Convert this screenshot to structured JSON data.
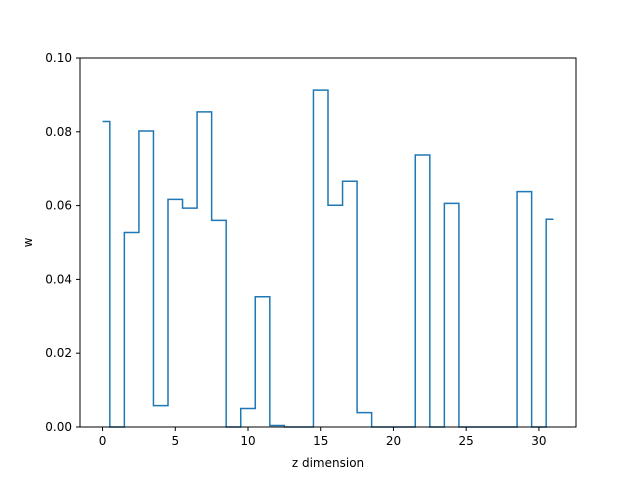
{
  "chart_data": {
    "type": "line",
    "drawstyle": "steps-mid",
    "xlabel": "z dimension",
    "ylabel": "w",
    "xlim": [
      -1.55,
      32.55
    ],
    "ylim": [
      0,
      0.1
    ],
    "xticks": [
      0,
      5,
      10,
      15,
      20,
      25,
      30
    ],
    "yticks": [
      0.0,
      0.02,
      0.04,
      0.06,
      0.08,
      0.1
    ],
    "ytick_labels": [
      "0.00",
      "0.02",
      "0.04",
      "0.06",
      "0.08",
      "0.10"
    ],
    "grid": false,
    "series": [
      {
        "color": "#1f77b4",
        "x": [
          0,
          1,
          2,
          3,
          4,
          5,
          6,
          7,
          8,
          9,
          10,
          11,
          12,
          13,
          14,
          15,
          16,
          17,
          18,
          19,
          20,
          21,
          22,
          23,
          24,
          25,
          26,
          27,
          28,
          29,
          30,
          31
        ],
        "y": [
          0.0828,
          0,
          0.0527,
          0.0802,
          0.0058,
          0.0617,
          0.0593,
          0.0854,
          0.056,
          0,
          0.005,
          0.0353,
          0.0004,
          0,
          0,
          0.0913,
          0.0601,
          0.0666,
          0.0039,
          0,
          0,
          0,
          0.0737,
          0,
          0.0606,
          0,
          0,
          0,
          0,
          0.0638,
          0,
          0.0563
        ]
      }
    ]
  }
}
